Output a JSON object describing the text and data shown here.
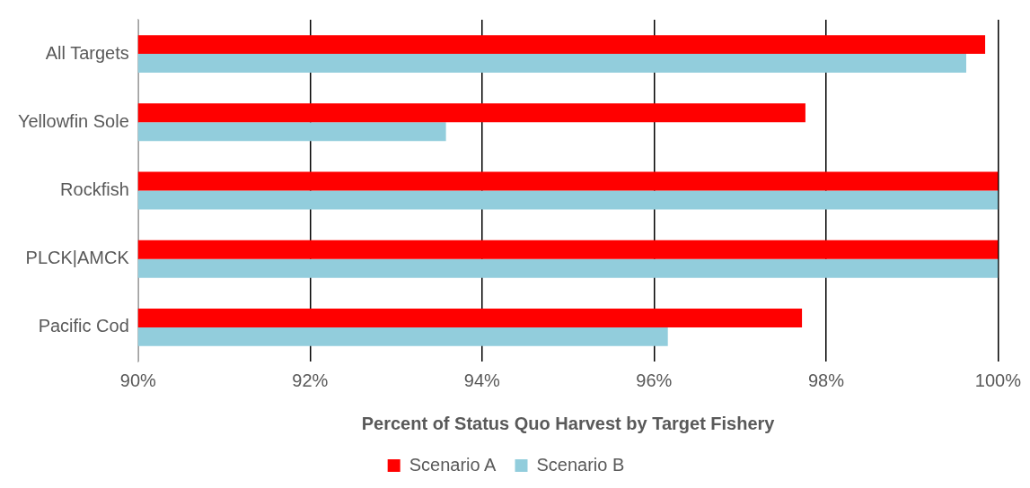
{
  "chart_data": {
    "type": "bar",
    "orientation": "horizontal",
    "xlabel": "Percent of Status Quo Harvest by Target Fishery",
    "categories": [
      "All Targets",
      "Yellowfin Sole",
      "Rockfish",
      "PLCK|AMCK",
      "Pacific Cod"
    ],
    "series": [
      {
        "name": "Scenario A",
        "color": "#ff0000",
        "values": [
          99.85,
          97.76,
          100,
          100,
          97.72
        ]
      },
      {
        "name": "Scenario B",
        "color": "#92cddc",
        "values": [
          99.63,
          93.58,
          100,
          100,
          96.16
        ]
      }
    ],
    "xlim": [
      90,
      100
    ],
    "xticks": [
      {
        "value": 90,
        "label": "90%"
      },
      {
        "value": 92,
        "label": "92%"
      },
      {
        "value": 94,
        "label": "94%"
      },
      {
        "value": 96,
        "label": "96%"
      },
      {
        "value": 98,
        "label": "98%"
      },
      {
        "value": 100,
        "label": "100%"
      }
    ],
    "grid": "x",
    "legend": "bottom"
  }
}
